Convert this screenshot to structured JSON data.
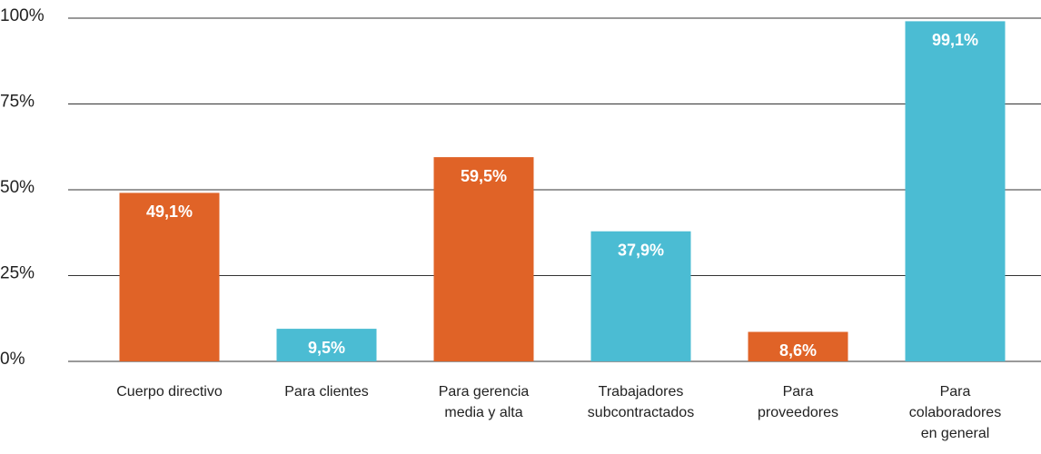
{
  "chart_data": {
    "type": "bar",
    "categories": [
      "Cuerpo directivo",
      "Para clientes",
      "Para gerencia\nmedia y alta",
      "Trabajadores\nsubcontractados",
      "Para\nproveedores",
      "Para\ncolaboradores\nen general"
    ],
    "values": [
      49.1,
      9.5,
      59.5,
      37.9,
      8.6,
      99.1
    ],
    "value_labels": [
      "49,1%",
      "9,5%",
      "59,5%",
      "37,9%",
      "8,6%",
      "99,1%"
    ],
    "colors": [
      "#e06327",
      "#4bbcd3",
      "#e06327",
      "#4bbcd3",
      "#e06327",
      "#4bbcd3"
    ],
    "ylim": [
      0,
      100
    ],
    "yticks": [
      {
        "value": 0,
        "label": "0%"
      },
      {
        "value": 25,
        "label": "25%"
      },
      {
        "value": 50,
        "label": "50%"
      },
      {
        "value": 75,
        "label": "75%"
      },
      {
        "value": 100,
        "label": "100%"
      }
    ],
    "grid": true
  }
}
